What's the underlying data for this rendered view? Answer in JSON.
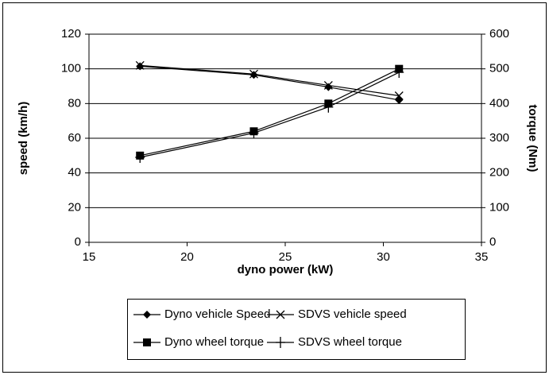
{
  "chart_data": {
    "type": "line",
    "x_label": "dyno power (kW)",
    "y_label": "speed (km/h)",
    "y2_label": "torque (Nm)",
    "xlim": [
      15,
      35
    ],
    "xticks": [
      15,
      20,
      25,
      30,
      35
    ],
    "ylim": [
      0,
      120
    ],
    "yticks": [
      0,
      20,
      40,
      60,
      80,
      100,
      120
    ],
    "y2lim": [
      0,
      600
    ],
    "y2ticks": [
      0,
      100,
      200,
      300,
      400,
      500,
      600
    ],
    "grid": true,
    "legend": "bottom",
    "x": [
      17.6,
      23.4,
      27.2,
      30.8
    ],
    "series": [
      {
        "name": "Dyno vehicle Speed",
        "color": "#000000",
        "marker": "diamond",
        "values": [
          101.5,
          96.5,
          89.5,
          82
        ]
      },
      {
        "name": "SDVS vehicle speed",
        "color": "#000000",
        "marker": "cross",
        "values": [
          102,
          97,
          90.5,
          84.5
        ]
      },
      {
        "name": "Dyno wheel torque",
        "color": "#000000",
        "marker": "square",
        "axis": "y2",
        "values": [
          250,
          320,
          400,
          500
        ]
      },
      {
        "name": "SDVS wheel torque",
        "color": "#000000",
        "marker": "plus",
        "axis": "y2",
        "values": [
          245,
          315,
          390,
          490
        ]
      }
    ]
  }
}
